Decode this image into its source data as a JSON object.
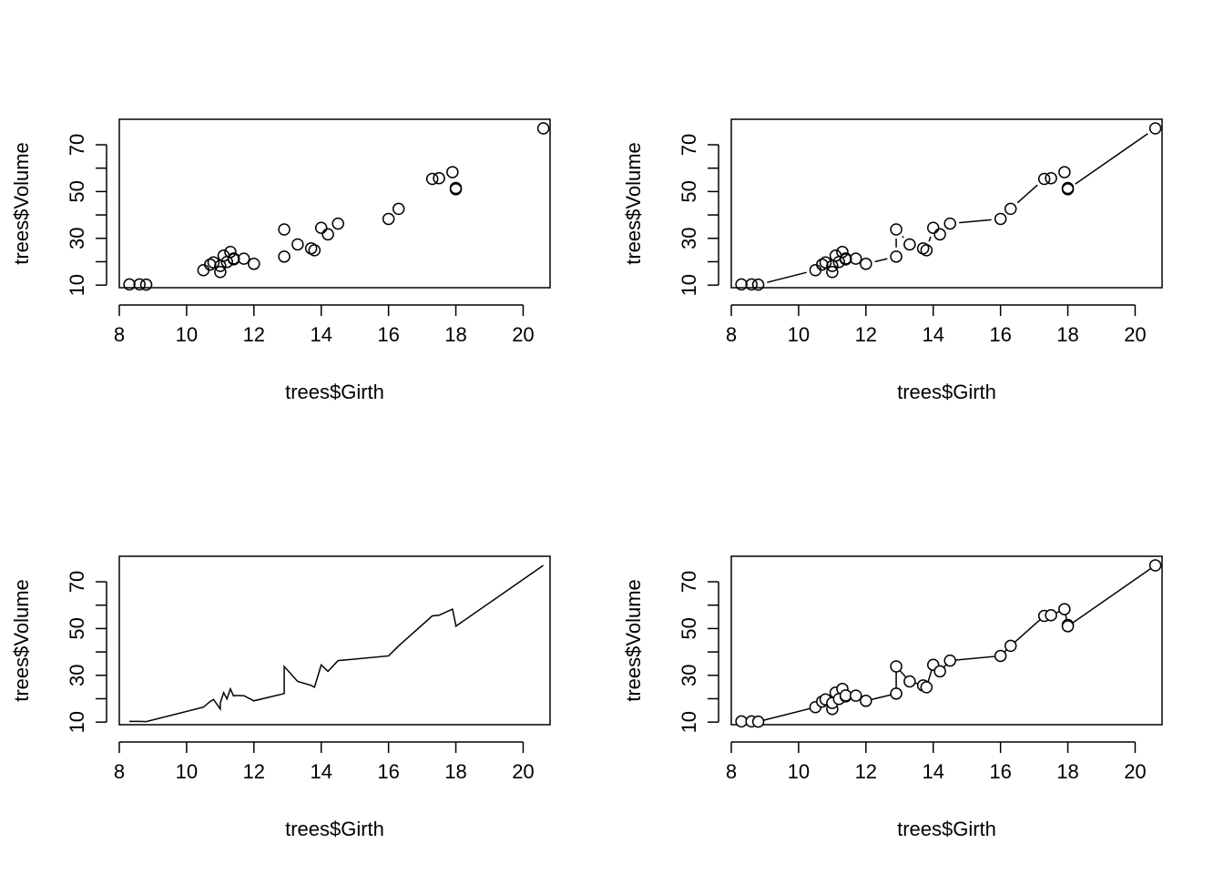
{
  "chart_data": [
    {
      "type": "scatter",
      "plot_style": "p",
      "title": "",
      "xlabel": "trees$Girth",
      "ylabel": "trees$Volume",
      "xlim": [
        8.0,
        20.8
      ],
      "ylim": [
        8.9,
        80.9
      ],
      "xticks": [
        8,
        10,
        12,
        14,
        16,
        18,
        20
      ],
      "yticks": [
        10,
        20,
        30,
        40,
        50,
        60,
        70
      ],
      "ytick_labels": [
        "10",
        "",
        "30",
        "",
        "50",
        "",
        "70"
      ],
      "grid": false,
      "series": [
        {
          "x": [
            8.3,
            8.6,
            8.8,
            10.5,
            10.7,
            10.8,
            11.0,
            11.0,
            11.1,
            11.2,
            11.3,
            11.4,
            11.4,
            11.7,
            12.0,
            12.9,
            12.9,
            13.3,
            13.7,
            13.8,
            14.0,
            14.2,
            14.5,
            16.0,
            16.3,
            17.3,
            17.5,
            17.9,
            18.0,
            18.0,
            20.6
          ],
          "y": [
            10.3,
            10.3,
            10.2,
            16.4,
            18.8,
            19.7,
            15.6,
            18.2,
            22.6,
            19.9,
            24.2,
            21.0,
            21.4,
            21.3,
            19.1,
            22.2,
            33.8,
            27.4,
            25.7,
            24.9,
            34.5,
            31.7,
            36.3,
            38.3,
            42.6,
            55.4,
            55.7,
            58.3,
            51.5,
            51.0,
            77.0
          ]
        }
      ]
    },
    {
      "type": "scatter",
      "plot_style": "b",
      "title": "",
      "xlabel": "trees$Girth",
      "ylabel": "trees$Volume",
      "xlim": [
        8.0,
        20.8
      ],
      "ylim": [
        8.9,
        80.9
      ],
      "xticks": [
        8,
        10,
        12,
        14,
        16,
        18,
        20
      ],
      "yticks": [
        10,
        20,
        30,
        40,
        50,
        60,
        70
      ],
      "ytick_labels": [
        "10",
        "",
        "30",
        "",
        "50",
        "",
        "70"
      ],
      "grid": false,
      "series": [
        {
          "x": [
            8.3,
            8.6,
            8.8,
            10.5,
            10.7,
            10.8,
            11.0,
            11.0,
            11.1,
            11.2,
            11.3,
            11.4,
            11.4,
            11.7,
            12.0,
            12.9,
            12.9,
            13.3,
            13.7,
            13.8,
            14.0,
            14.2,
            14.5,
            16.0,
            16.3,
            17.3,
            17.5,
            17.9,
            18.0,
            18.0,
            20.6
          ],
          "y": [
            10.3,
            10.3,
            10.2,
            16.4,
            18.8,
            19.7,
            15.6,
            18.2,
            22.6,
            19.9,
            24.2,
            21.0,
            21.4,
            21.3,
            19.1,
            22.2,
            33.8,
            27.4,
            25.7,
            24.9,
            34.5,
            31.7,
            36.3,
            38.3,
            42.6,
            55.4,
            55.7,
            58.3,
            51.5,
            51.0,
            77.0
          ]
        }
      ]
    },
    {
      "type": "line",
      "plot_style": "l",
      "title": "",
      "xlabel": "trees$Girth",
      "ylabel": "trees$Volume",
      "xlim": [
        8.0,
        20.8
      ],
      "ylim": [
        8.9,
        80.9
      ],
      "xticks": [
        8,
        10,
        12,
        14,
        16,
        18,
        20
      ],
      "yticks": [
        10,
        20,
        30,
        40,
        50,
        60,
        70
      ],
      "ytick_labels": [
        "10",
        "",
        "30",
        "",
        "50",
        "",
        "70"
      ],
      "grid": false,
      "series": [
        {
          "x": [
            8.3,
            8.6,
            8.8,
            10.5,
            10.7,
            10.8,
            11.0,
            11.0,
            11.1,
            11.2,
            11.3,
            11.4,
            11.4,
            11.7,
            12.0,
            12.9,
            12.9,
            13.3,
            13.7,
            13.8,
            14.0,
            14.2,
            14.5,
            16.0,
            16.3,
            17.3,
            17.5,
            17.9,
            18.0,
            18.0,
            20.6
          ],
          "y": [
            10.3,
            10.3,
            10.2,
            16.4,
            18.8,
            19.7,
            15.6,
            18.2,
            22.6,
            19.9,
            24.2,
            21.0,
            21.4,
            21.3,
            19.1,
            22.2,
            33.8,
            27.4,
            25.7,
            24.9,
            34.5,
            31.7,
            36.3,
            38.3,
            42.6,
            55.4,
            55.7,
            58.3,
            51.5,
            51.0,
            77.0
          ]
        }
      ]
    },
    {
      "type": "line",
      "plot_style": "o",
      "title": "",
      "xlabel": "trees$Girth",
      "ylabel": "trees$Volume",
      "xlim": [
        8.0,
        20.8
      ],
      "ylim": [
        8.9,
        80.9
      ],
      "xticks": [
        8,
        10,
        12,
        14,
        16,
        18,
        20
      ],
      "yticks": [
        10,
        20,
        30,
        40,
        50,
        60,
        70
      ],
      "ytick_labels": [
        "10",
        "",
        "30",
        "",
        "50",
        "",
        "70"
      ],
      "grid": false,
      "series": [
        {
          "x": [
            8.3,
            8.6,
            8.8,
            10.5,
            10.7,
            10.8,
            11.0,
            11.0,
            11.1,
            11.2,
            11.3,
            11.4,
            11.4,
            11.7,
            12.0,
            12.9,
            12.9,
            13.3,
            13.7,
            13.8,
            14.0,
            14.2,
            14.5,
            16.0,
            16.3,
            17.3,
            17.5,
            17.9,
            18.0,
            18.0,
            20.6
          ],
          "y": [
            10.3,
            10.3,
            10.2,
            16.4,
            18.8,
            19.7,
            15.6,
            18.2,
            22.6,
            19.9,
            24.2,
            21.0,
            21.4,
            21.3,
            19.1,
            22.2,
            33.8,
            27.4,
            25.7,
            24.9,
            34.5,
            31.7,
            36.3,
            38.3,
            42.6,
            55.4,
            55.7,
            58.3,
            51.5,
            51.0,
            77.0
          ]
        }
      ]
    }
  ],
  "colors": {
    "ink": "#000000",
    "background": "#ffffff"
  }
}
